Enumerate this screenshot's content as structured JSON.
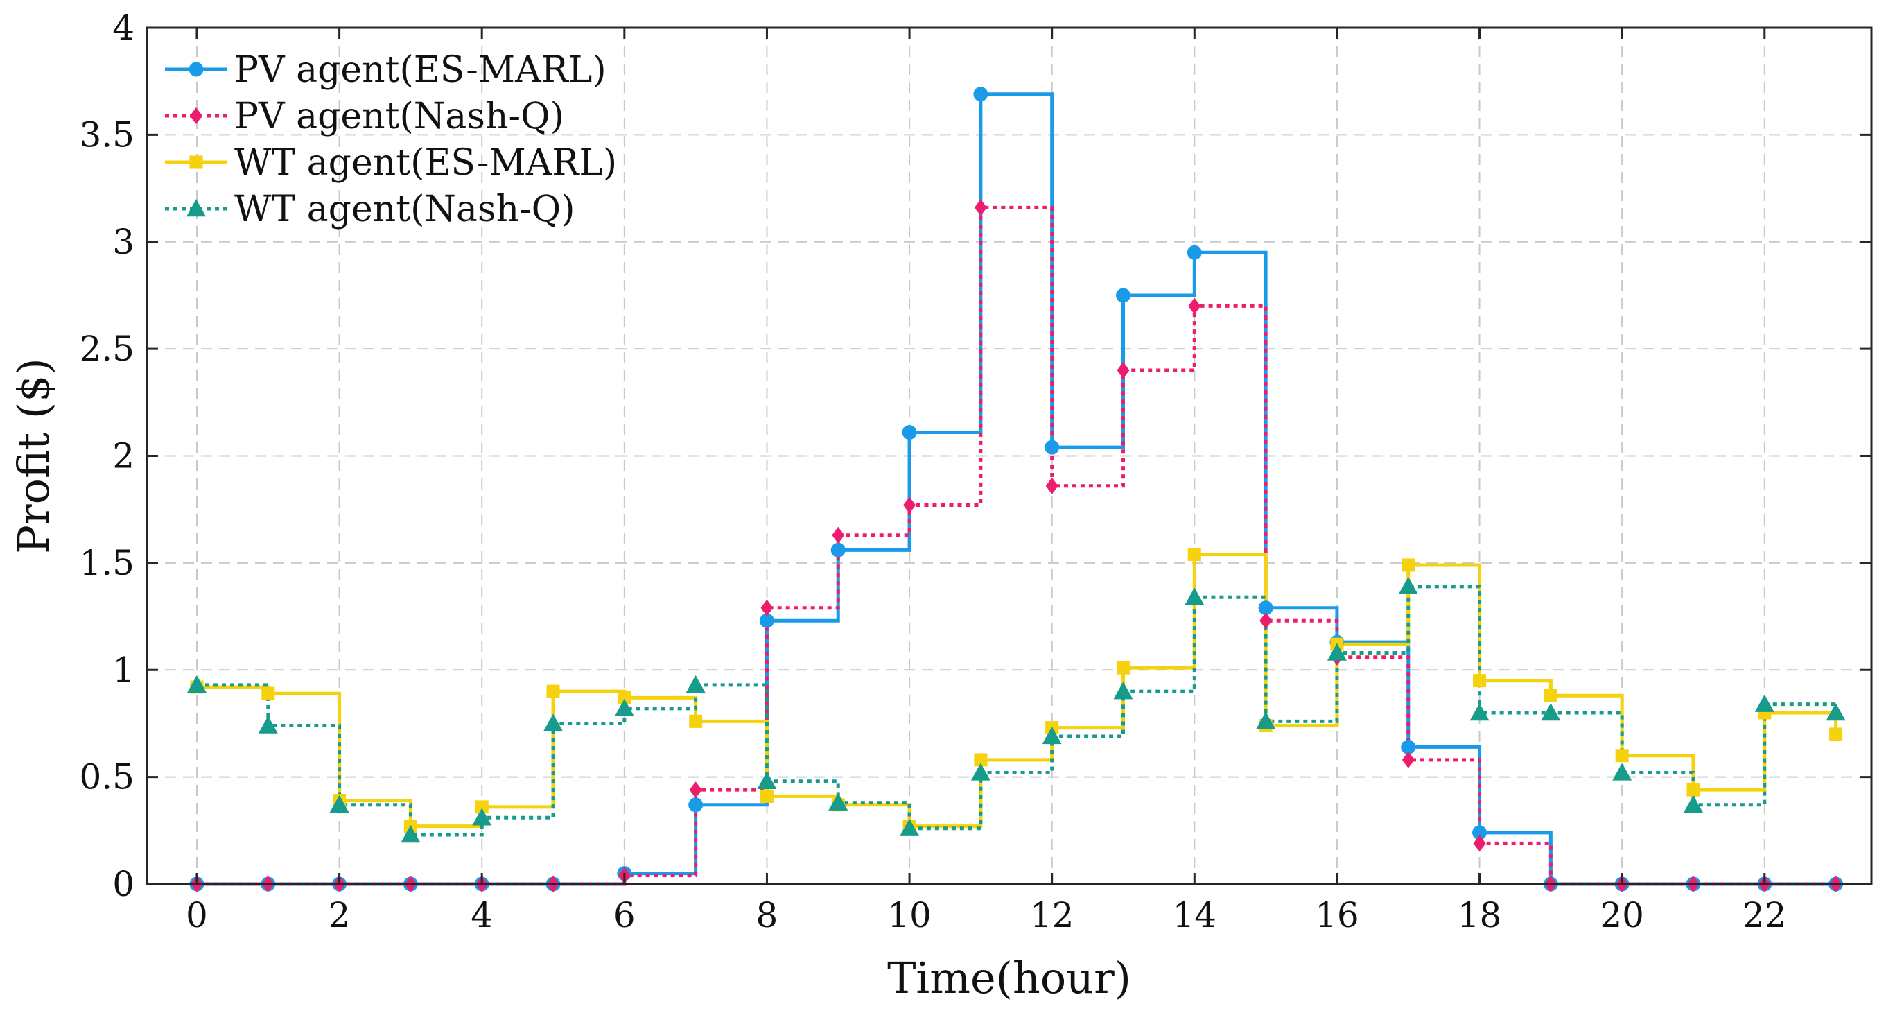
{
  "chart_data": {
    "type": "line",
    "step": "post",
    "xlabel": "Time(hour)",
    "ylabel": "Profit ($)",
    "xlim": [
      -0.7,
      23.5
    ],
    "ylim": [
      0,
      4
    ],
    "xticks": [
      0,
      2,
      4,
      6,
      8,
      10,
      12,
      14,
      16,
      18,
      20,
      22
    ],
    "yticks": [
      0,
      0.5,
      1,
      1.5,
      2,
      2.5,
      3,
      3.5,
      4
    ],
    "ytick_labels": [
      "0",
      "0.5",
      "1",
      "1.5",
      "2",
      "2.5",
      "3",
      "3.5",
      "4"
    ],
    "grid": true,
    "legend_position": "top-left",
    "x": [
      0,
      1,
      2,
      3,
      4,
      5,
      6,
      7,
      8,
      9,
      10,
      11,
      12,
      13,
      14,
      15,
      16,
      17,
      18,
      19,
      20,
      21,
      22,
      23
    ],
    "series": [
      {
        "name": "PV agent(ES-MARL)",
        "color": "#1a9bea",
        "line": "solid",
        "marker": "circle",
        "values": [
          0,
          0,
          0,
          0,
          0,
          0,
          0.05,
          0.37,
          1.23,
          1.56,
          2.11,
          3.69,
          2.04,
          2.75,
          2.95,
          1.29,
          1.13,
          0.64,
          0.24,
          0,
          0,
          0,
          0,
          0
        ]
      },
      {
        "name": "PV agent(Nash-Q)",
        "color": "#ee1c6d",
        "line": "dotted",
        "marker": "diamond",
        "values": [
          0,
          0,
          0,
          0,
          0,
          0,
          0.04,
          0.44,
          1.29,
          1.63,
          1.77,
          3.16,
          1.86,
          2.4,
          2.7,
          1.23,
          1.06,
          0.58,
          0.19,
          0,
          0,
          0,
          0,
          0
        ]
      },
      {
        "name": "WT agent(ES-MARL)",
        "color": "#f5d20d",
        "line": "solid",
        "marker": "square",
        "values": [
          0.92,
          0.89,
          0.39,
          0.27,
          0.36,
          0.9,
          0.87,
          0.76,
          0.41,
          0.37,
          0.27,
          0.58,
          0.73,
          1.01,
          1.54,
          0.74,
          1.12,
          1.49,
          0.95,
          0.88,
          0.6,
          0.44,
          0.8,
          0.7
        ]
      },
      {
        "name": "WT agent(Nash-Q)",
        "color": "#179b8b",
        "line": "dotted",
        "marker": "triangle",
        "values": [
          0.93,
          0.74,
          0.37,
          0.23,
          0.31,
          0.75,
          0.82,
          0.93,
          0.48,
          0.38,
          0.26,
          0.52,
          0.69,
          0.9,
          1.34,
          0.76,
          1.08,
          1.39,
          0.8,
          0.8,
          0.52,
          0.37,
          0.84,
          0.8
        ]
      }
    ]
  }
}
